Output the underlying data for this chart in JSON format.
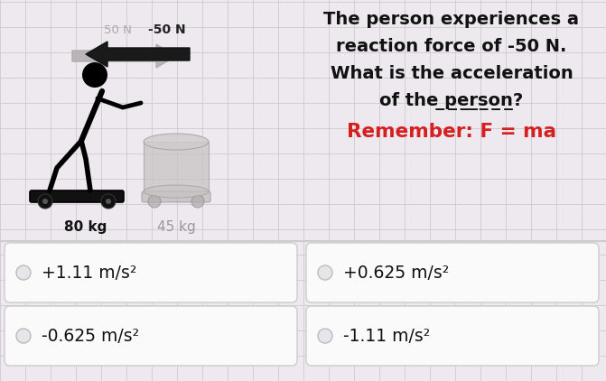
{
  "bg_color": "#ede9ee",
  "grid_color": "#cfc9d0",
  "question_line1": "The person experiences a",
  "question_line2": "reaction force of -50 N.",
  "question_line3": "What is the acceleration",
  "question_line4": "of the person?",
  "question_word_underline": "person",
  "reminder": "Remember: F = ma",
  "reminder_color": "#d42020",
  "force_left_label": "50 N",
  "force_left_color": "#aaaaaa",
  "force_right_label": "-50 N",
  "force_right_color": "#222222",
  "mass_person": "80 kg",
  "mass_object": "45 kg",
  "mass_object_color": "#999999",
  "choices": [
    "+1.11 m/s²",
    "+0.625 m/s²",
    "-0.625 m/s²",
    "-1.11 m/s²"
  ],
  "choice_bg": "#fafafa",
  "choice_border": "#cccccc",
  "text_color": "#111111",
  "font_size_question": 13.5,
  "font_size_choices": 13.5
}
